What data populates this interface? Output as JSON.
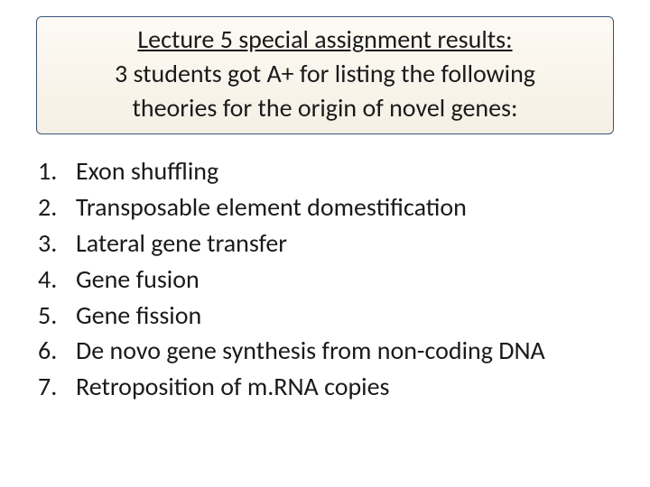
{
  "header": {
    "title": "Lecture 5 special assignment results:",
    "line1": "3 students got A+ for listing the following",
    "line2": "theories for the origin of novel genes:"
  },
  "list": {
    "items": [
      {
        "num": "1.",
        "text": "Exon shuffling"
      },
      {
        "num": "2.",
        "text": "Transposable element domestification"
      },
      {
        "num": "3.",
        "text": "Lateral gene transfer"
      },
      {
        "num": "4.",
        "text": "Gene fusion"
      },
      {
        "num": "5.",
        "text": "Gene fission"
      },
      {
        "num": "6.",
        "text": "De novo gene synthesis from non-coding DNA"
      },
      {
        "num": "7.",
        "text": "Retroposition of m.RNA copies"
      }
    ]
  },
  "style": {
    "background_color": "#ffffff",
    "text_color": "#1a1a1a",
    "header_box_border": "#3a5578",
    "header_box_bg_top": "#fdfaf4",
    "header_box_bg_bottom": "#f5f0e4",
    "title_fontsize": 28,
    "list_fontsize": 28,
    "font_family": "Calibri"
  }
}
